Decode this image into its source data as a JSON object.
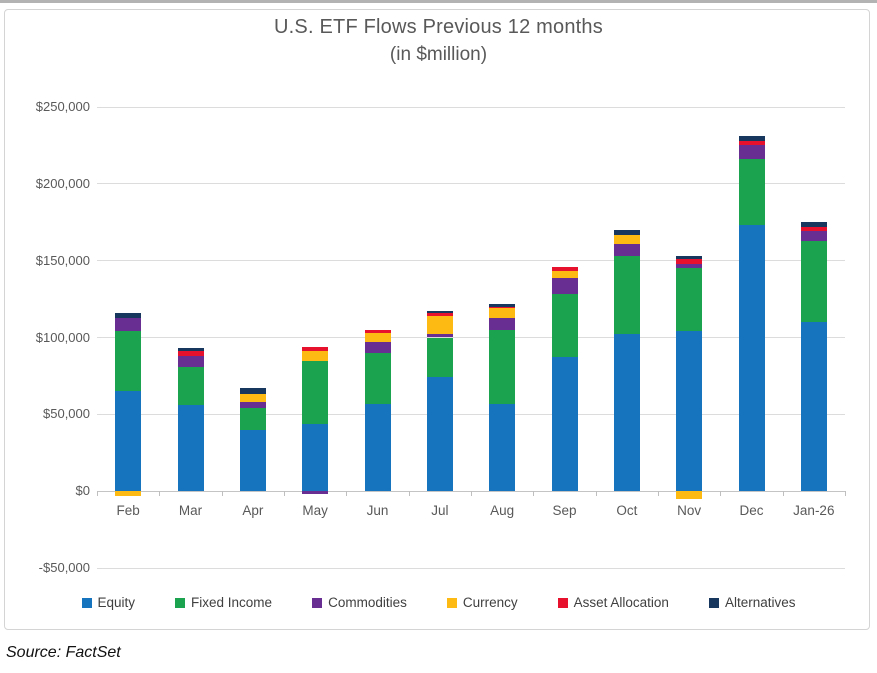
{
  "source": {
    "label": "Source: FactSet"
  },
  "chart_data": {
    "type": "bar",
    "stacked": true,
    "title": "U.S. ETF Flows Previous 12 months",
    "subtitle": "(in $million)",
    "unit": "$million",
    "categories": [
      "Feb",
      "Mar",
      "Apr",
      "May",
      "Jun",
      "Jul",
      "Aug",
      "Sep",
      "Oct",
      "Nov",
      "Dec",
      "Jan-26"
    ],
    "series": [
      {
        "name": "Equity",
        "color": "#1673be",
        "values": [
          65000,
          56000,
          40000,
          44000,
          57000,
          74000,
          57000,
          87000,
          102000,
          104000,
          173000,
          110000
        ]
      },
      {
        "name": "Fixed Income",
        "color": "#1ca350",
        "values": [
          39000,
          25000,
          14000,
          41000,
          33000,
          26000,
          48000,
          41000,
          51000,
          41000,
          43000,
          53000
        ]
      },
      {
        "name": "Commodities",
        "color": "#682e91",
        "values": [
          9000,
          7000,
          4000,
          -2000,
          7000,
          2000,
          8000,
          11000,
          8000,
          3000,
          9000,
          6000
        ]
      },
      {
        "name": "Currency",
        "color": "#fdba12",
        "values": [
          -3000,
          0,
          5000,
          6000,
          6000,
          12000,
          6000,
          4000,
          6000,
          -5000,
          0,
          0
        ]
      },
      {
        "name": "Asset Allocation",
        "color": "#e8112d",
        "values": [
          0,
          3000,
          0,
          3000,
          2000,
          2000,
          1000,
          3000,
          0,
          3000,
          3000,
          3000
        ]
      },
      {
        "name": "Alternatives",
        "color": "#17375e",
        "values": [
          3000,
          2000,
          4000,
          0,
          0,
          1000,
          2000,
          0,
          3000,
          2000,
          3000,
          3000
        ]
      }
    ],
    "y_axis": {
      "min": -50000,
      "max": 250000,
      "step": 50000,
      "tick_labels": [
        "$250,000",
        "$200,000",
        "$150,000",
        "$100,000",
        "$50,000",
        "$0",
        "-$50,000"
      ]
    },
    "grid": true,
    "legend_position": "bottom"
  }
}
